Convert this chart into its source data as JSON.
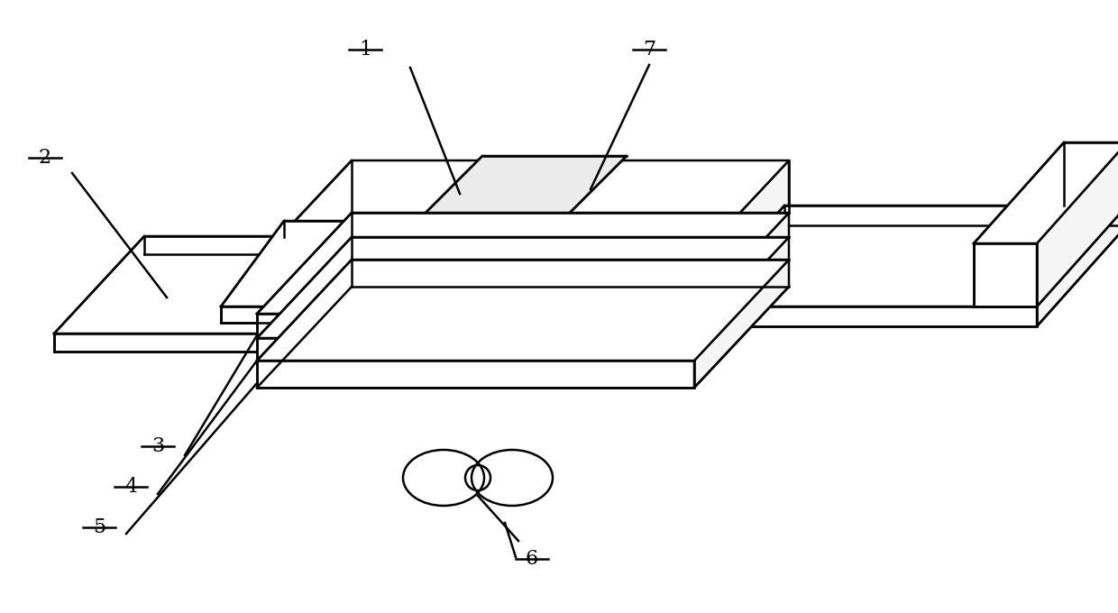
{
  "background_color": "#ffffff",
  "line_color": "#000000",
  "line_width": 1.8,
  "figsize": [
    12.4,
    6.8
  ],
  "dpi": 100,
  "label_fontsize": 16
}
